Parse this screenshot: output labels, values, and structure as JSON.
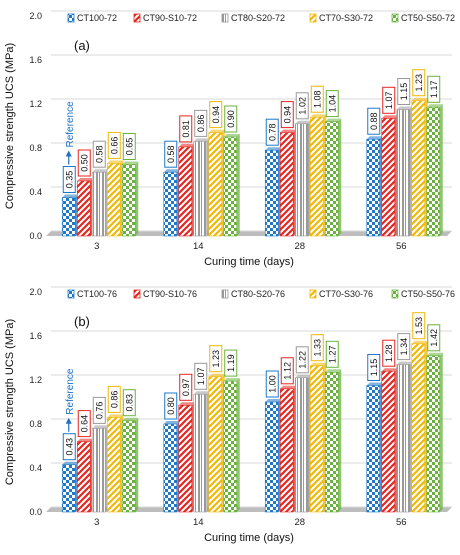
{
  "chart_data": [
    {
      "panel_label": "(a)",
      "type": "bar",
      "xlabel": "Curing time (days)",
      "ylabel": "Compressive strength UCS (MPa)",
      "ylim": [
        0,
        2.0
      ],
      "yticks": [
        "0.0",
        "0.4",
        "0.8",
        "1.2",
        "1.6",
        "2.0"
      ],
      "grid": true,
      "legend_position": "top",
      "annotation": "Reference",
      "categories": [
        "3",
        "14",
        "28",
        "56"
      ],
      "series": [
        {
          "name": "CT100-72",
          "color": "#1f78c8",
          "pattern": "checker",
          "values": [
            0.35,
            0.58,
            0.78,
            0.88
          ]
        },
        {
          "name": "CT90-S10-72",
          "color": "#e8251f",
          "pattern": "diagonal",
          "values": [
            0.5,
            0.81,
            0.94,
            1.07
          ]
        },
        {
          "name": "CT80-S20-72",
          "color": "#9a9a9a",
          "pattern": "dots",
          "values": [
            0.58,
            0.86,
            1.02,
            1.15
          ]
        },
        {
          "name": "CT70-S30-72",
          "color": "#f2b705",
          "pattern": "diagonal",
          "values": [
            0.66,
            0.94,
            1.08,
            1.23
          ]
        },
        {
          "name": "CT50-S50-72",
          "color": "#6ab23d",
          "pattern": "checker",
          "values": [
            0.65,
            0.9,
            1.04,
            1.17
          ]
        }
      ],
      "data_labels": [
        [
          "0.35",
          "0.58",
          "0.78",
          "0.88"
        ],
        [
          "0.50",
          "0.81",
          "0.94",
          "1.07"
        ],
        [
          "0.58",
          "0.86",
          "1.02",
          "1.15"
        ],
        [
          "0.66",
          "0.94",
          "1.08",
          "1.23"
        ],
        [
          "0.65",
          "0.90",
          "1.04",
          "1.17"
        ]
      ]
    },
    {
      "panel_label": "(b)",
      "type": "bar",
      "xlabel": "Curing time (days)",
      "ylabel": "Compressive strength UCS (MPa)",
      "ylim": [
        0,
        2.0
      ],
      "yticks": [
        "0.0",
        "0.4",
        "0.8",
        "1.2",
        "1.6",
        "2.0"
      ],
      "grid": true,
      "legend_position": "top",
      "annotation": "Reference",
      "categories": [
        "3",
        "14",
        "28",
        "56"
      ],
      "series": [
        {
          "name": "CT100-76",
          "color": "#1f78c8",
          "pattern": "checker",
          "values": [
            0.43,
            0.8,
            1.0,
            1.15
          ]
        },
        {
          "name": "CT90-S10-76",
          "color": "#e8251f",
          "pattern": "diagonal",
          "values": [
            0.64,
            0.97,
            1.12,
            1.28
          ]
        },
        {
          "name": "CT80-S20-76",
          "color": "#9a9a9a",
          "pattern": "dots",
          "values": [
            0.76,
            1.07,
            1.22,
            1.34
          ]
        },
        {
          "name": "CT70-S30-76",
          "color": "#f2b705",
          "pattern": "diagonal",
          "values": [
            0.86,
            1.23,
            1.33,
            1.53
          ]
        },
        {
          "name": "CT50-S50-76",
          "color": "#6ab23d",
          "pattern": "checker",
          "values": [
            0.83,
            1.19,
            1.27,
            1.42
          ]
        }
      ],
      "data_labels": [
        [
          "0.43",
          "0.80",
          "1.00",
          "1.15"
        ],
        [
          "0.64",
          "0.97",
          "1.12",
          "1.28"
        ],
        [
          "0.76",
          "1.07",
          "1.22",
          "1.34"
        ],
        [
          "0.86",
          "1.23",
          "1.33",
          "1.53"
        ],
        [
          "0.83",
          "1.19",
          "1.27",
          "1.42"
        ]
      ]
    }
  ]
}
